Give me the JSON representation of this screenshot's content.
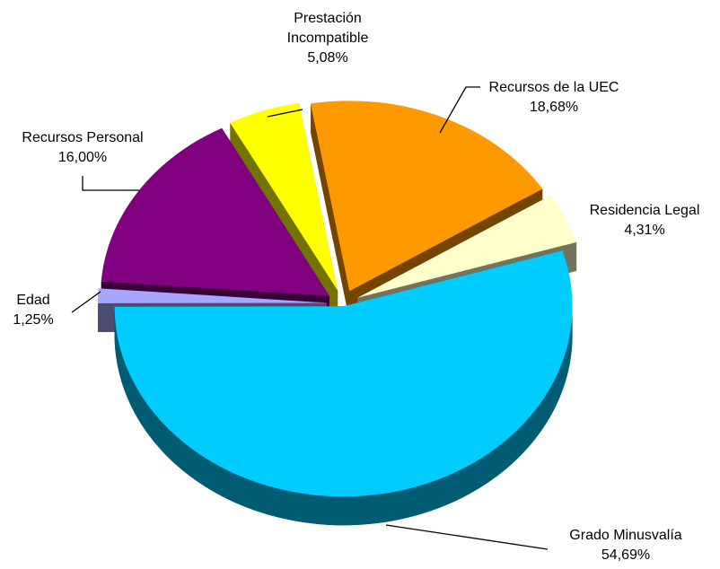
{
  "chart_data": {
    "type": "pie",
    "categories": [
      "Grado Minusvalía",
      "Edad",
      "Recursos Personal",
      "Prestación Incompatible",
      "Recursos de la UEC",
      "Residencia Legal"
    ],
    "values": [
      54.69,
      1.25,
      16.0,
      5.08,
      18.68,
      4.31
    ],
    "value_labels": [
      "54,69%",
      "1,25%",
      "16,00%",
      "5,08%",
      "18,68%",
      "4,31%"
    ],
    "colors": [
      "#00ccff",
      "#a6a6ff",
      "#800080",
      "#ffff00",
      "#ff9900",
      "#ffffcc"
    ]
  }
}
